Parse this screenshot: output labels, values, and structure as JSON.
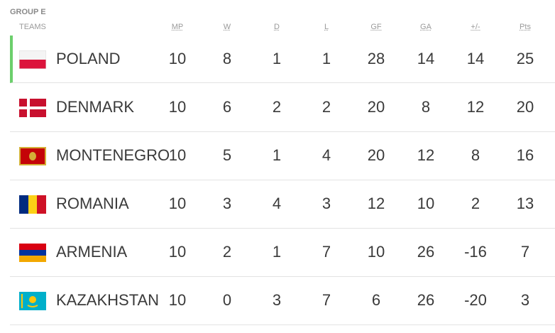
{
  "group": "GROUP E",
  "table": {
    "header": [
      "TEAMS",
      "MP",
      "W",
      "D",
      "L",
      "GF",
      "GA",
      "+/-",
      "Pts"
    ],
    "rows": [
      [
        "POLAND",
        10,
        8,
        1,
        1,
        28,
        14,
        14,
        25
      ],
      [
        "DENMARK",
        10,
        6,
        2,
        2,
        20,
        8,
        12,
        20
      ],
      [
        "MONTENEGRO",
        10,
        5,
        1,
        4,
        20,
        12,
        8,
        16
      ],
      [
        "ROMANIA",
        10,
        3,
        4,
        3,
        12,
        10,
        2,
        13
      ],
      [
        "ARMENIA",
        10,
        2,
        1,
        7,
        10,
        26,
        -16,
        7
      ],
      [
        "KAZAKHSTAN",
        10,
        0,
        3,
        7,
        6,
        26,
        -20,
        3
      ]
    ]
  }
}
